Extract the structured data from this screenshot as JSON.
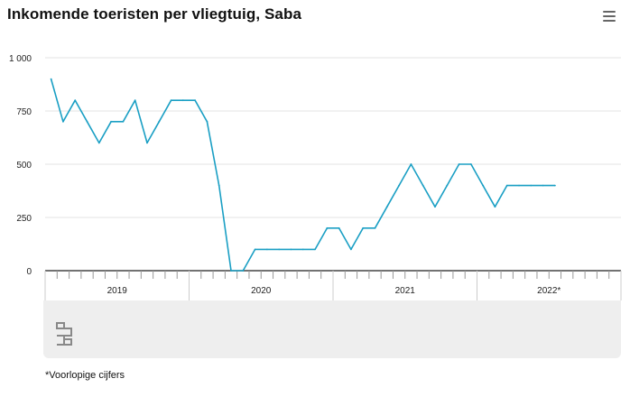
{
  "title": "Inkomende toeristen per vliegtuig, Saba",
  "footnote": "*Voorlopige cijfers",
  "icons": {
    "menu": "hamburger-menu-icon",
    "logo": "cbs-logo"
  },
  "colors": {
    "line": "#1a9fc4",
    "grid": "#e3e3e3",
    "axis": "#444444",
    "panel": "#eeeeee"
  },
  "chart_data": {
    "type": "line",
    "title": "Inkomende toeristen per vliegtuig, Saba",
    "xlabel": "",
    "ylabel": "",
    "ylim": [
      0,
      1000
    ],
    "yticks": [
      0,
      250,
      500,
      750,
      1000
    ],
    "ytick_labels": [
      "0",
      "250",
      "500",
      "750",
      "1 000"
    ],
    "grid": true,
    "x_period": {
      "start": "2019-01",
      "end": "2022-12"
    },
    "year_labels": [
      "2019",
      "2020",
      "2021",
      "2022*"
    ],
    "series": [
      {
        "values": [
          900,
          700,
          800,
          700,
          600,
          700,
          700,
          800,
          600,
          700,
          800,
          800,
          800,
          700,
          400,
          0,
          0,
          100,
          100,
          100,
          100,
          100,
          100,
          200,
          200,
          100,
          200,
          200,
          300,
          400,
          500,
          400,
          300,
          400,
          500,
          500,
          400,
          300,
          400,
          400,
          400,
          400,
          400
        ]
      }
    ]
  }
}
